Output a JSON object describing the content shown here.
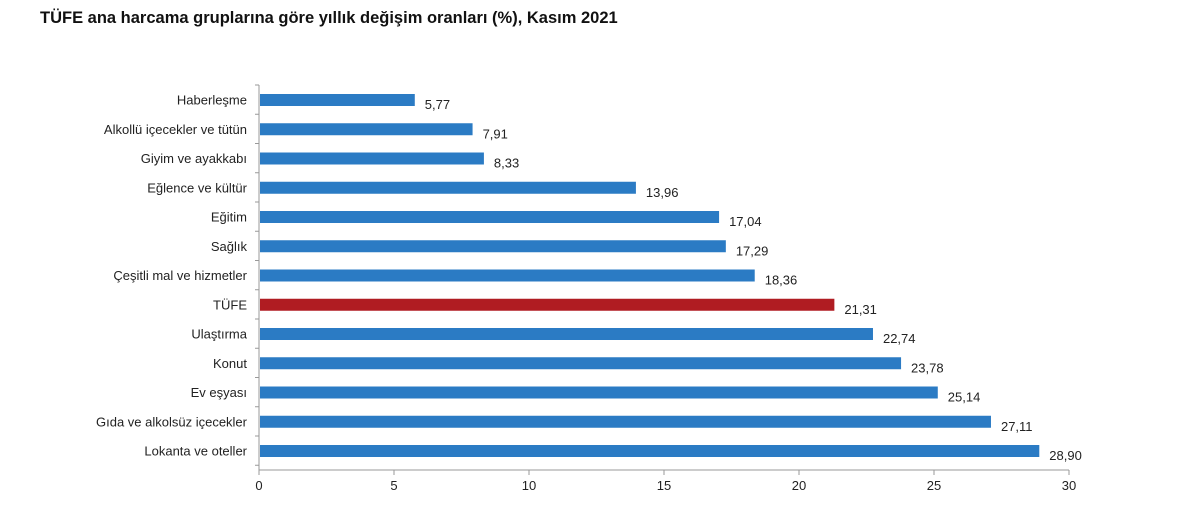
{
  "chart_data": {
    "type": "bar",
    "orientation": "horizontal",
    "title": "TÜFE ana harcama gruplarına göre yıllık değişim oranları (%), Kasım 2021",
    "categories": [
      "Haberleşme",
      "Alkollü içecekler ve tütün",
      "Giyim ve ayakkabı",
      "Eğlence ve kültür",
      "Eğitim",
      "Sağlık",
      "Çeşitli mal ve hizmetler",
      "TÜFE",
      "Ulaştırma",
      "Konut",
      "Ev eşyası",
      "Gıda ve alkolsüz içecekler",
      "Lokanta ve oteller"
    ],
    "values": [
      5.77,
      7.91,
      8.33,
      13.96,
      17.04,
      17.29,
      18.36,
      21.31,
      22.74,
      23.78,
      25.14,
      27.11,
      28.9
    ],
    "value_labels": [
      "5,77",
      "7,91",
      "8,33",
      "13,96",
      "17,04",
      "17,29",
      "18,36",
      "21,31",
      "22,74",
      "23,78",
      "25,14",
      "27,11",
      "28,90"
    ],
    "xlim": [
      0,
      30
    ],
    "xticks": [
      "0",
      "5",
      "10",
      "15",
      "20",
      "25",
      "30"
    ],
    "grid": false,
    "colors": {
      "default": "#2b7bc4",
      "highlight": "#b01c22",
      "highlight_category": "TÜFE"
    }
  }
}
